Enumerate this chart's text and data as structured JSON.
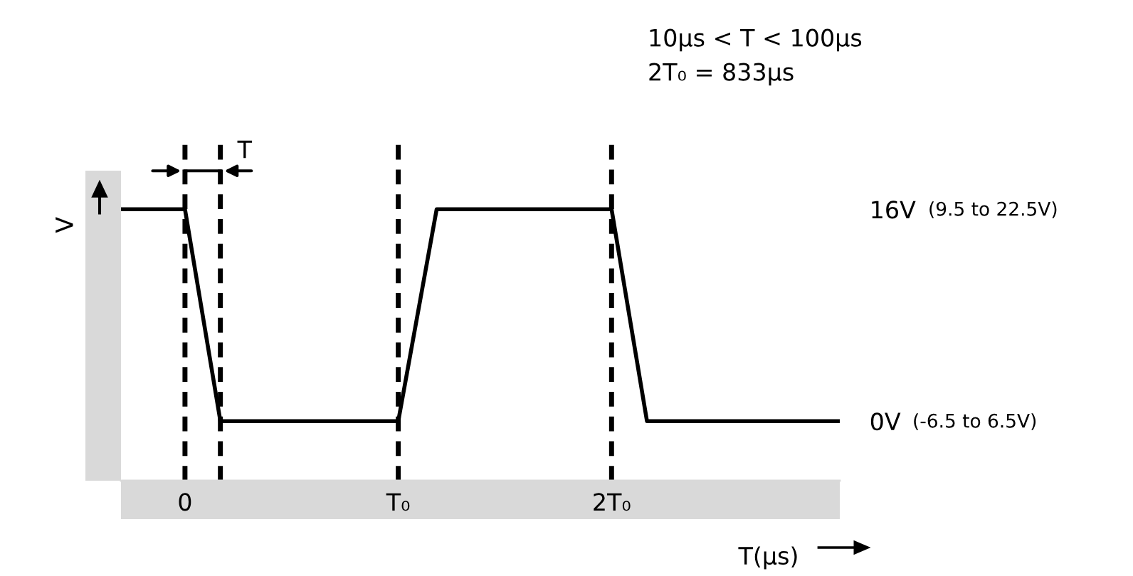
{
  "chart_data": {
    "type": "line",
    "xlabel": "T(µs)",
    "ylabel": "V",
    "x": [
      -0.3,
      0,
      0.166,
      1,
      1.18,
      2,
      2.166,
      3.07
    ],
    "series": [
      {
        "color": "#000000",
        "values": [
          16,
          16,
          0,
          0,
          16,
          16,
          0,
          0
        ]
      }
    ],
    "ylim": [
      -4.5,
      21.6
    ],
    "yticks": [
      {
        "value": 0,
        "label": "0V"
      },
      {
        "value": 16,
        "label": "16V"
      }
    ],
    "xlim": [
      -0.3,
      3.07
    ],
    "xticks": [
      0,
      {
        "value": 1,
        "label": "T₀"
      },
      {
        "value": 2,
        "label": "2T₀"
      }
    ],
    "ref_lines": [
      {
        "axis": "x",
        "value": 0,
        "color": "#000000",
        "line_style": "dashed"
      },
      {
        "axis": "x",
        "value": 0.166,
        "color": "#000000",
        "line_style": "dashed"
      },
      {
        "axis": "x",
        "value": 1,
        "color": "#000000",
        "line_style": "dashed"
      },
      {
        "axis": "x",
        "value": 2,
        "color": "#000000",
        "line_style": "dashed"
      }
    ],
    "annotations": [
      "10µs < T < 100µs",
      "2T₀ = 833µs",
      {
        "text": "T",
        "x": 0.166,
        "y": 19.5
      },
      "(9.5 to 22.5V)",
      "(-6.5 to 6.5V)"
    ],
    "grid": false,
    "legend": false,
    "marker": "none",
    "line_style": "solid"
  }
}
